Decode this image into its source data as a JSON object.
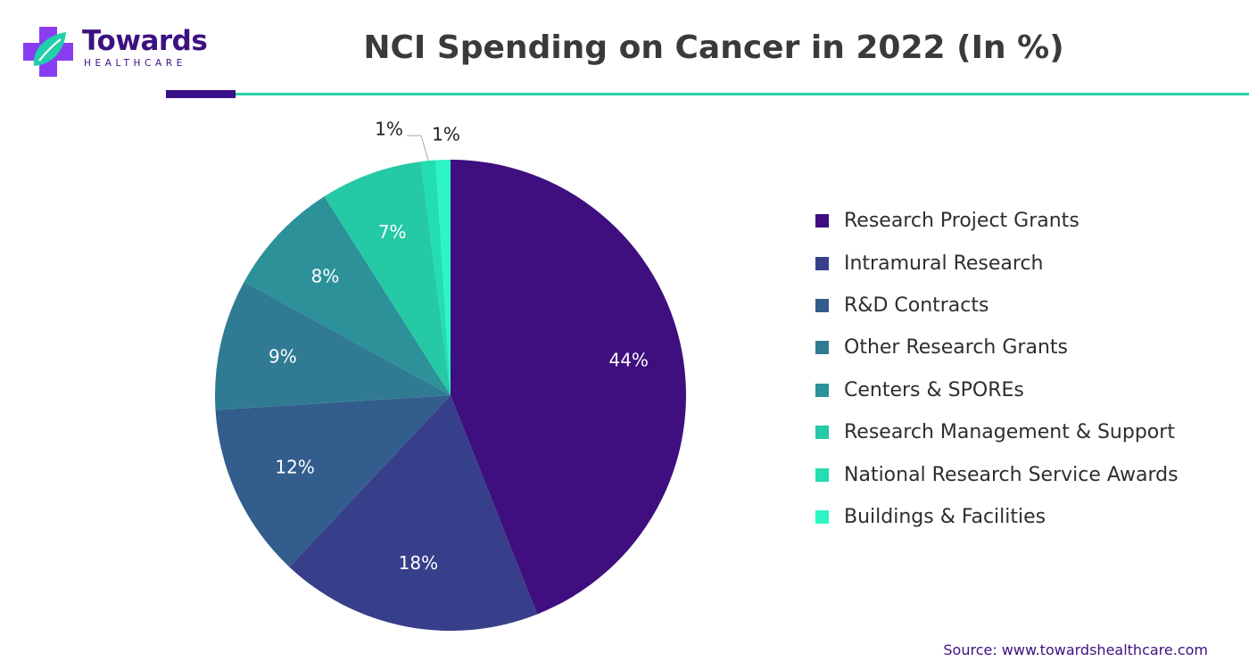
{
  "logo": {
    "name": "Towards",
    "tagline": "HEALTHCARE",
    "colors": {
      "purple": "#3d1180",
      "violet": "#8a3df0",
      "teal": "#1fd0a8"
    }
  },
  "chart_data": {
    "type": "pie",
    "title": "NCI Spending on Cancer in 2022 (In %)",
    "unit": "%",
    "legend_position": "right",
    "slices": [
      {
        "name": "Research Project Grants",
        "value": 44,
        "label": "44%",
        "color": "#3f0f7f"
      },
      {
        "name": "Intramural Research",
        "value": 18,
        "label": "18%",
        "color": "#373f8a"
      },
      {
        "name": "R&D Contracts",
        "value": 12,
        "label": "12%",
        "color": "#335d8c"
      },
      {
        "name": "Other Research Grants",
        "value": 9,
        "label": "9%",
        "color": "#307b93"
      },
      {
        "name": "Centers & SPOREs",
        "value": 8,
        "label": "8%",
        "color": "#2c9199"
      },
      {
        "name": "Research Management & Support",
        "value": 7,
        "label": "7%",
        "color": "#25c9a5"
      },
      {
        "name": "National Research Service Awards",
        "value": 1,
        "label": "1%",
        "color": "#22deb1"
      },
      {
        "name": "Buildings & Facilities",
        "value": 1,
        "label": "1%",
        "color": "#2ef5c5"
      }
    ]
  },
  "source": "Source: www.towardshealthcare.com"
}
